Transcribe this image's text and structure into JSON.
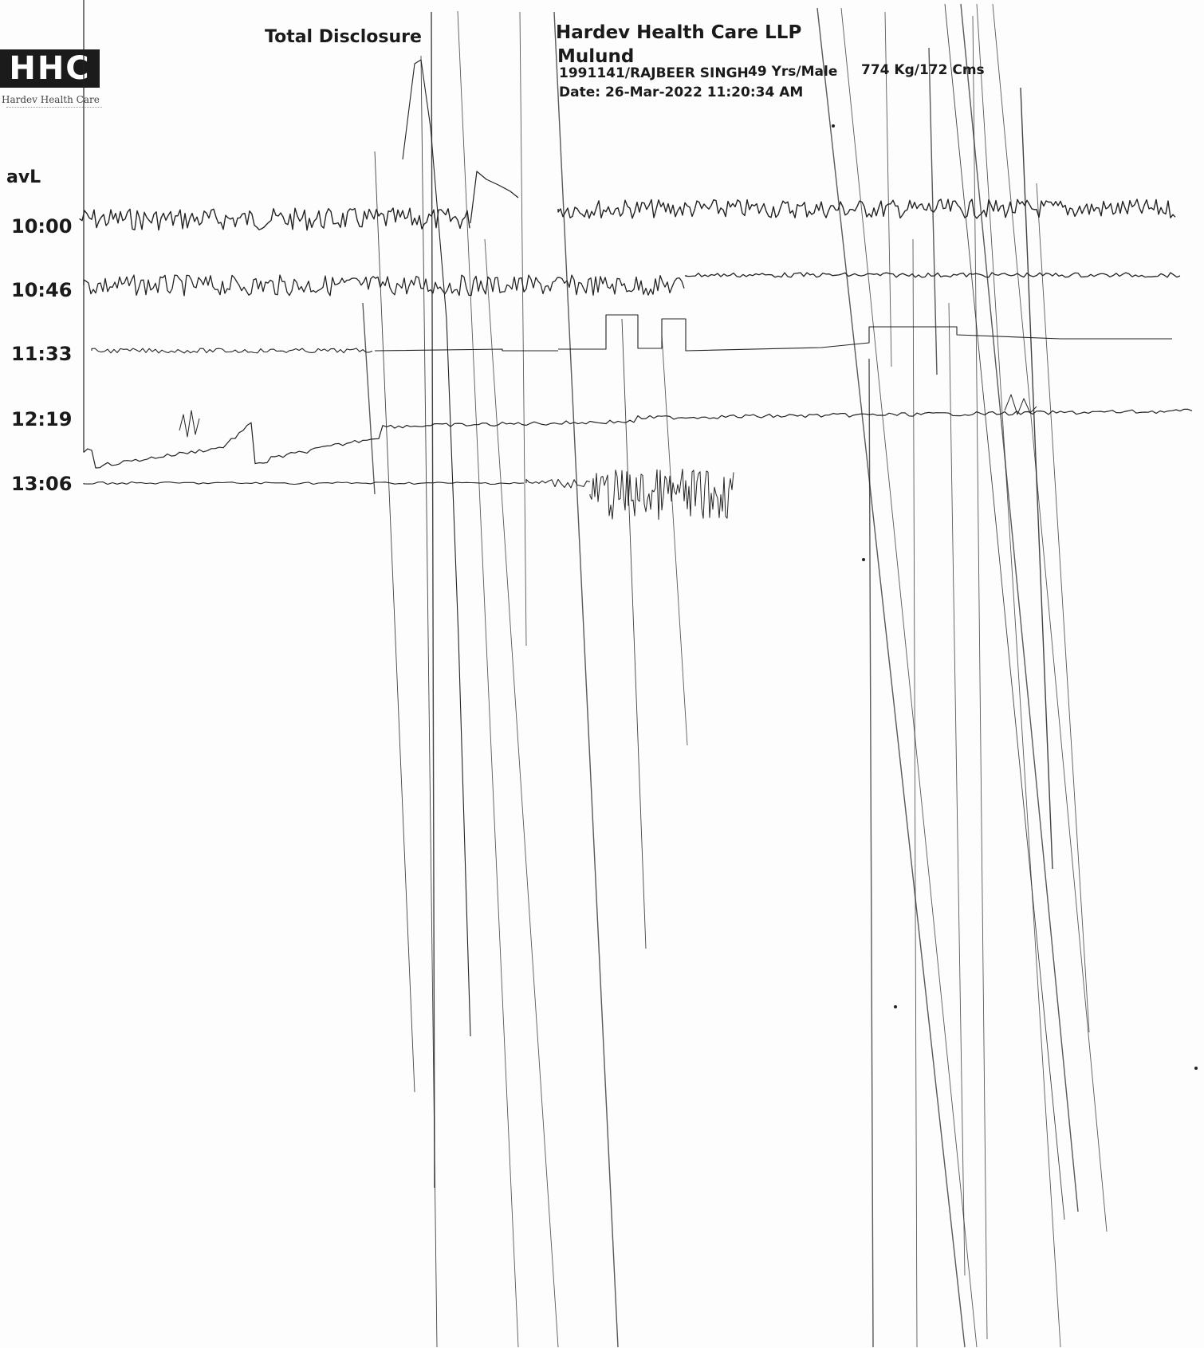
{
  "header": {
    "report_title": "Total Disclosure",
    "company": "Hardev Health Care LLP",
    "branch": "Mulund",
    "patient": "1991141/RAJBEER SINGH",
    "age_sex": "49 Yrs/Male",
    "weight_height": "774 Kg/172 Cms",
    "date": "Date: 26-Mar-2022 11:20:34 AM"
  },
  "logo": {
    "mark": "HHC",
    "name": "Hardev Health Care"
  },
  "lead": "avL",
  "strips": [
    {
      "time": "10:00"
    },
    {
      "time": "10:46"
    },
    {
      "time": "11:33"
    },
    {
      "time": "12:19"
    },
    {
      "time": "13:06"
    }
  ],
  "colors": {
    "ink": "#1a1a1a",
    "trace": "#222222",
    "paper": "#fdfdfd"
  }
}
